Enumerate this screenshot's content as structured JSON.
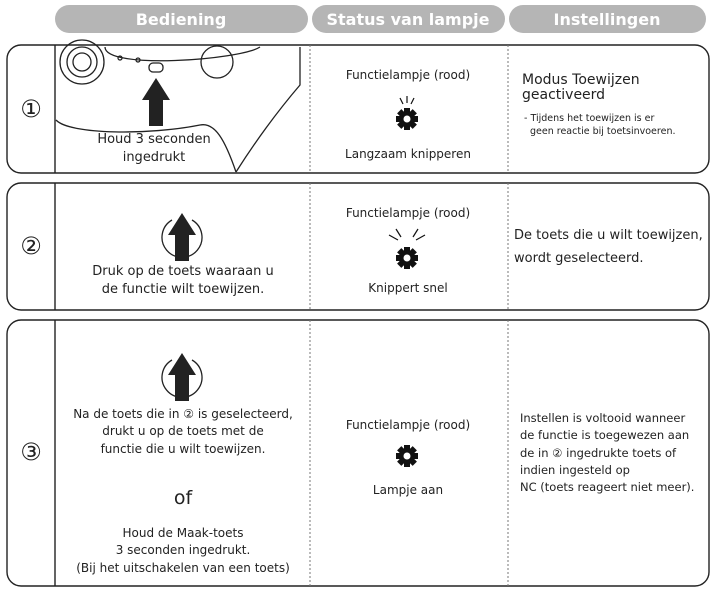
{
  "header": {
    "columns": [
      "Bediening",
      "Status van lampje",
      "Instellingen"
    ]
  },
  "rows": [
    {
      "number": "①",
      "operation": [
        "Houd 3 seconden",
        "ingedrukt"
      ],
      "lamp": "Functielampje (rood)",
      "status": "Langzaam knipperen",
      "setting_title": [
        "Modus Toewijzen",
        "geactiveerd"
      ],
      "setting": [
        "- Tijdens het toewijzen is er",
        "geen reactie bij toetsinvoeren."
      ]
    },
    {
      "number": "②",
      "operation": [
        "Druk op de toets waaraan u",
        "de functie wilt toewijzen."
      ],
      "lamp": "Functielampje (rood)",
      "status": "Knippert snel",
      "setting": [
        "De toets die u wilt toewijzen,",
        "wordt geselecteerd."
      ]
    },
    {
      "number": "③",
      "operation": [
        "Na de toets die in ② is geselecteerd,",
        "drukt u op de toets met de",
        "functie die u wilt toewijzen."
      ],
      "or": "of",
      "alternative": [
        "Houd de Maak-toets",
        "3 seconden ingedrukt.",
        "(Bij het uitschakelen van een toets)"
      ],
      "lamp": "Functielampje (rood)",
      "status": "Lampje aan",
      "setting": [
        "Instellen is voltooid wanneer",
        "de functie is toegewezen aan",
        "de in ② ingedrukte toets of",
        "indien ingesteld op",
        "NC (toets reageert niet meer)."
      ]
    }
  ]
}
